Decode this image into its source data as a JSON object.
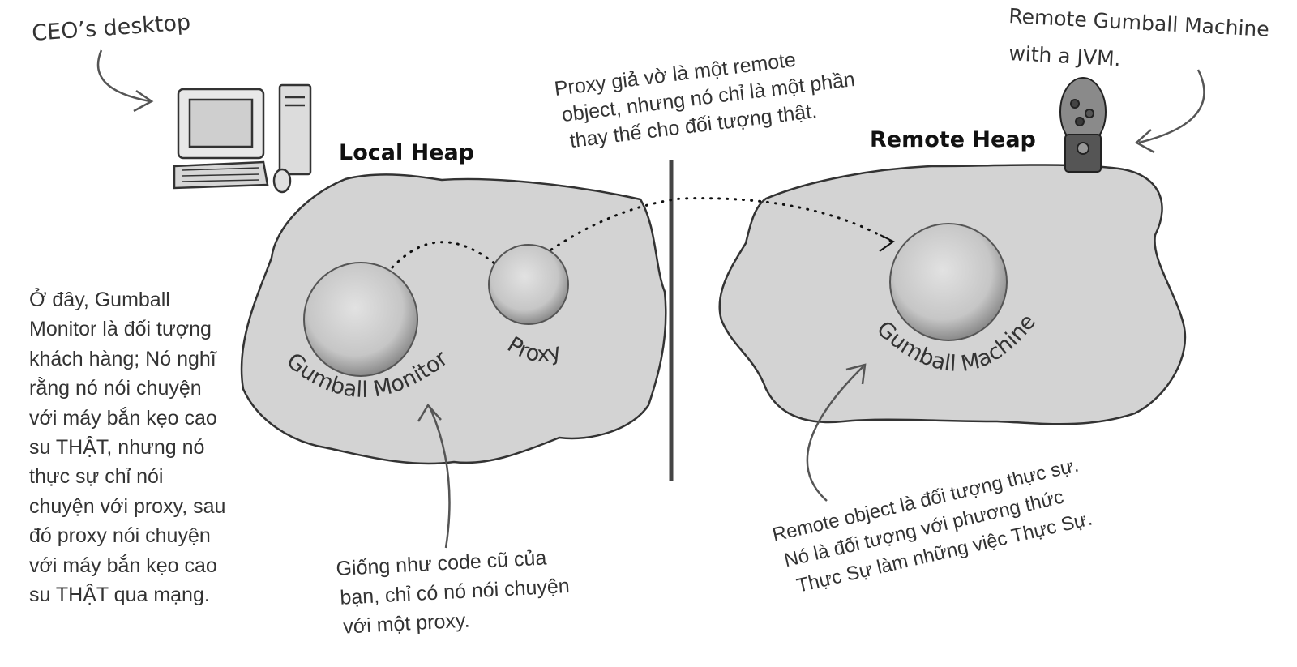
{
  "labels": {
    "ceo_desktop": "CEO’s desktop",
    "remote_machine": [
      "Remote Gumball Machine",
      "with a JVM."
    ],
    "local_heap": "Local Heap",
    "remote_heap": "Remote Heap",
    "gumball_monitor": "Gumball Monitor",
    "proxy": "Proxy",
    "gumball_machine": "Gumball Machine"
  },
  "notes": {
    "proxy_note": [
      "Proxy giả vờ là một remote",
      "object, nhưng nó chỉ là một phần",
      "thay thế cho đối tượng thật."
    ],
    "left_note": [
      "Ở đây, Gumball",
      "Monitor là đối tượng",
      "khách hàng; Nó nghĩ",
      "rằng nó nói chuyện",
      "với máy bắn kẹo cao",
      "su THẬT, nhưng nó",
      "thực sự chỉ nói",
      "chuyện với proxy, sau",
      "đó proxy nói chuyện",
      "với máy bắn kẹo cao",
      "su THẬT qua mạng."
    ],
    "bottom_note": [
      "Giống như code cũ của",
      "bạn, chỉ có nó nói chuyện",
      "với một proxy."
    ],
    "remote_note": [
      "Remote object là đối tượng thực sự.",
      "Nó là đối tượng với phương thức",
      "Thực Sự làm những việc Thực Sự."
    ]
  },
  "colors": {
    "heap_fill": "#d3d3d3",
    "outline": "#333333",
    "sphere": "#c8c8c8"
  }
}
